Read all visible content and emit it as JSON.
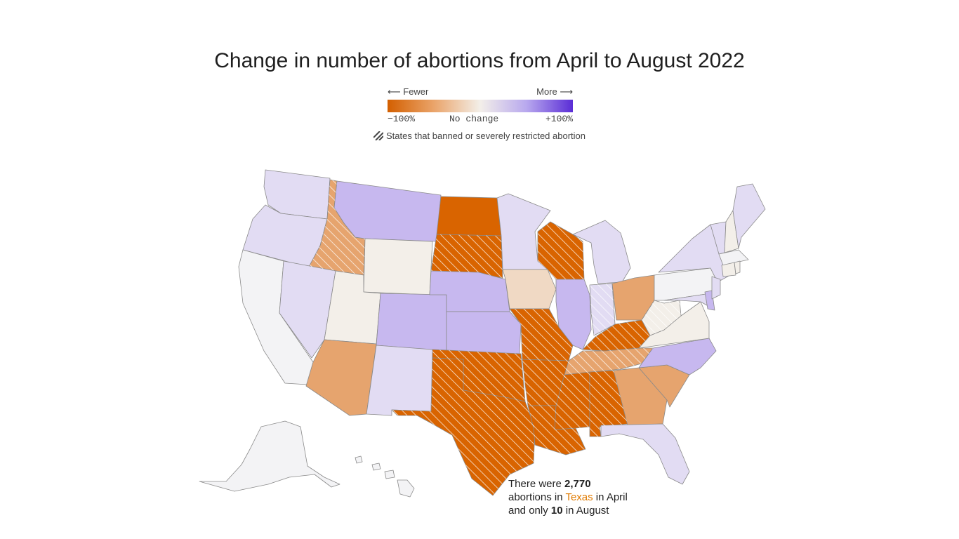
{
  "title": "Change in number of abortions from April to August 2022",
  "legend": {
    "fewer": "⟵ Fewer",
    "more": "More ⟶",
    "min_label": "−100%",
    "mid_label": "No change",
    "max_label": "+100%",
    "colors": [
      "#d35f00",
      "#eaa46a",
      "#f3efe9",
      "#b8a8ee",
      "#5a2dd6"
    ],
    "hatch_note": "States that banned or severely restricted abortion"
  },
  "annotation": {
    "line1_pre": "There were ",
    "april_count": "2,770",
    "line2_pre": "abortions in ",
    "state": "Texas",
    "line2_post": " in April",
    "line3_pre": "and only ",
    "august_count": "10",
    "line3_post": " in August"
  },
  "map_data": {
    "colors": {
      "strong_decrease": "#d96400",
      "moderate_decrease": "#e6a46e",
      "slight_decrease": "#f0d9c4",
      "no_change": "#f3efe9",
      "slight_increase": "#e2dcf3",
      "moderate_increase": "#c7b8ef",
      "neutral": "#f3f3f5"
    },
    "states": [
      {
        "code": "WA",
        "category": "slight_increase",
        "hatched": false
      },
      {
        "code": "OR",
        "category": "slight_increase",
        "hatched": false
      },
      {
        "code": "CA",
        "category": "neutral",
        "hatched": false
      },
      {
        "code": "ID",
        "category": "moderate_decrease",
        "hatched": true
      },
      {
        "code": "NV",
        "category": "slight_increase",
        "hatched": false
      },
      {
        "code": "MT",
        "category": "moderate_increase",
        "hatched": false
      },
      {
        "code": "WY",
        "category": "no_change",
        "hatched": false
      },
      {
        "code": "UT",
        "category": "no_change",
        "hatched": false
      },
      {
        "code": "AZ",
        "category": "moderate_decrease",
        "hatched": false
      },
      {
        "code": "CO",
        "category": "moderate_increase",
        "hatched": false
      },
      {
        "code": "NM",
        "category": "slight_increase",
        "hatched": false
      },
      {
        "code": "ND",
        "category": "strong_decrease",
        "hatched": false
      },
      {
        "code": "SD",
        "category": "strong_decrease",
        "hatched": true
      },
      {
        "code": "NE",
        "category": "moderate_increase",
        "hatched": false
      },
      {
        "code": "KS",
        "category": "moderate_increase",
        "hatched": false
      },
      {
        "code": "OK",
        "category": "strong_decrease",
        "hatched": true
      },
      {
        "code": "TX",
        "category": "strong_decrease",
        "hatched": true
      },
      {
        "code": "MN",
        "category": "slight_increase",
        "hatched": false
      },
      {
        "code": "IA",
        "category": "slight_decrease",
        "hatched": false
      },
      {
        "code": "MO",
        "category": "strong_decrease",
        "hatched": true
      },
      {
        "code": "AR",
        "category": "strong_decrease",
        "hatched": true
      },
      {
        "code": "LA",
        "category": "strong_decrease",
        "hatched": true
      },
      {
        "code": "WI",
        "category": "strong_decrease",
        "hatched": true
      },
      {
        "code": "IL",
        "category": "moderate_increase",
        "hatched": false
      },
      {
        "code": "MI",
        "category": "slight_increase",
        "hatched": false
      },
      {
        "code": "IN",
        "category": "slight_increase",
        "hatched": true
      },
      {
        "code": "OH",
        "category": "moderate_decrease",
        "hatched": false
      },
      {
        "code": "KY",
        "category": "strong_decrease",
        "hatched": true
      },
      {
        "code": "TN",
        "category": "moderate_decrease",
        "hatched": true
      },
      {
        "code": "MS",
        "category": "strong_decrease",
        "hatched": true
      },
      {
        "code": "AL",
        "category": "strong_decrease",
        "hatched": true
      },
      {
        "code": "GA",
        "category": "moderate_decrease",
        "hatched": false
      },
      {
        "code": "FL",
        "category": "slight_increase",
        "hatched": false
      },
      {
        "code": "SC",
        "category": "moderate_decrease",
        "hatched": false
      },
      {
        "code": "NC",
        "category": "moderate_increase",
        "hatched": false
      },
      {
        "code": "VA",
        "category": "no_change",
        "hatched": false
      },
      {
        "code": "WV",
        "category": "no_change",
        "hatched": true
      },
      {
        "code": "PA",
        "category": "neutral",
        "hatched": false
      },
      {
        "code": "NY",
        "category": "slight_increase",
        "hatched": false
      },
      {
        "code": "MD",
        "category": "slight_increase",
        "hatched": false
      },
      {
        "code": "DE",
        "category": "moderate_increase",
        "hatched": false
      },
      {
        "code": "NJ",
        "category": "slight_increase",
        "hatched": false
      },
      {
        "code": "VT",
        "category": "slight_increase",
        "hatched": false
      },
      {
        "code": "NH",
        "category": "no_change",
        "hatched": false
      },
      {
        "code": "ME",
        "category": "slight_increase",
        "hatched": false
      },
      {
        "code": "MA",
        "category": "neutral",
        "hatched": false
      },
      {
        "code": "CT",
        "category": "no_change",
        "hatched": false
      },
      {
        "code": "RI",
        "category": "no_change",
        "hatched": false
      },
      {
        "code": "AK",
        "category": "neutral",
        "hatched": false
      },
      {
        "code": "HI",
        "category": "neutral",
        "hatched": false
      }
    ]
  }
}
